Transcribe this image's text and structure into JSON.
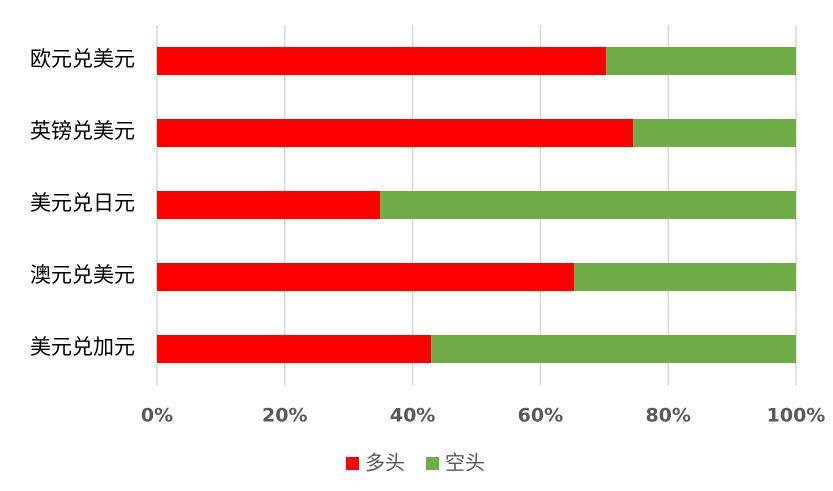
{
  "chart_data": {
    "type": "stacked-barh",
    "categories": [
      "欧元兑美元",
      "英镑兑美元",
      "美元兑日元",
      "澳元兑美元",
      "美元兑加元"
    ],
    "series": [
      {
        "name": "多头",
        "color": "#ff0000",
        "values": [
          70.3,
          74.5,
          34.9,
          65.3,
          42.9
        ]
      },
      {
        "name": "空头",
        "color": "#70ad47",
        "values": [
          29.7,
          25.5,
          65.1,
          34.7,
          57.1
        ]
      }
    ],
    "xlim": [
      0,
      100
    ],
    "xticks": [
      {
        "value": 0,
        "label": "0%"
      },
      {
        "value": 20,
        "label": "20%"
      },
      {
        "value": 40,
        "label": "40%"
      },
      {
        "value": 60,
        "label": "60%"
      },
      {
        "value": 80,
        "label": "80%"
      },
      {
        "value": 100,
        "label": "100%"
      }
    ],
    "grid": true
  }
}
